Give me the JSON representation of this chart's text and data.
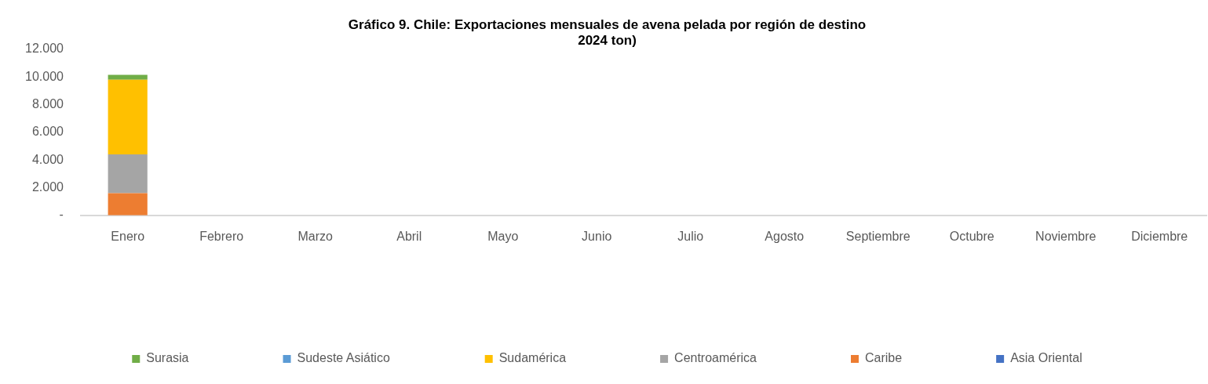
{
  "chart_data": {
    "type": "bar",
    "stacked": true,
    "title": "Gráfico 9. Chile: Exportaciones mensuales de avena pelada por región de destino\n2024 ton)",
    "categories": [
      "Enero",
      "Febrero",
      "Marzo",
      "Abril",
      "Mayo",
      "Junio",
      "Julio",
      "Agosto",
      "Septiembre",
      "Octubre",
      "Noviembre",
      "Diciembre"
    ],
    "series": [
      {
        "name": "Asia Oriental",
        "color": "#4472c4",
        "values": [
          null,
          null,
          null,
          null,
          null,
          null,
          null,
          null,
          null,
          null,
          null,
          null
        ]
      },
      {
        "name": "Caribe",
        "color": "#ed7d31",
        "values": [
          1600,
          null,
          null,
          null,
          null,
          null,
          null,
          null,
          null,
          null,
          null,
          null
        ]
      },
      {
        "name": "Centroamérica",
        "color": "#a5a5a5",
        "values": [
          2800,
          null,
          null,
          null,
          null,
          null,
          null,
          null,
          null,
          null,
          null,
          null
        ]
      },
      {
        "name": "Sudamérica",
        "color": "#ffc000",
        "values": [
          5400,
          null,
          null,
          null,
          null,
          null,
          null,
          null,
          null,
          null,
          null,
          null
        ]
      },
      {
        "name": "Sudeste Asiático",
        "color": "#5b9bd5",
        "values": [
          null,
          null,
          null,
          null,
          null,
          null,
          null,
          null,
          null,
          null,
          null,
          null
        ]
      },
      {
        "name": "Surasia",
        "color": "#70ad47",
        "values": [
          350,
          null,
          null,
          null,
          null,
          null,
          null,
          null,
          null,
          null,
          null,
          null
        ]
      }
    ],
    "ylim": [
      0,
      12000
    ],
    "yticks": [
      {
        "value": 0,
        "label": "-"
      },
      {
        "value": 2000,
        "label": "2.000"
      },
      {
        "value": 4000,
        "label": "4.000"
      },
      {
        "value": 6000,
        "label": "6.000"
      },
      {
        "value": 8000,
        "label": "8.000"
      },
      {
        "value": 10000,
        "label": "10.000"
      },
      {
        "value": 12000,
        "label": "12.000"
      }
    ],
    "grid": false,
    "legend": "bottom"
  }
}
